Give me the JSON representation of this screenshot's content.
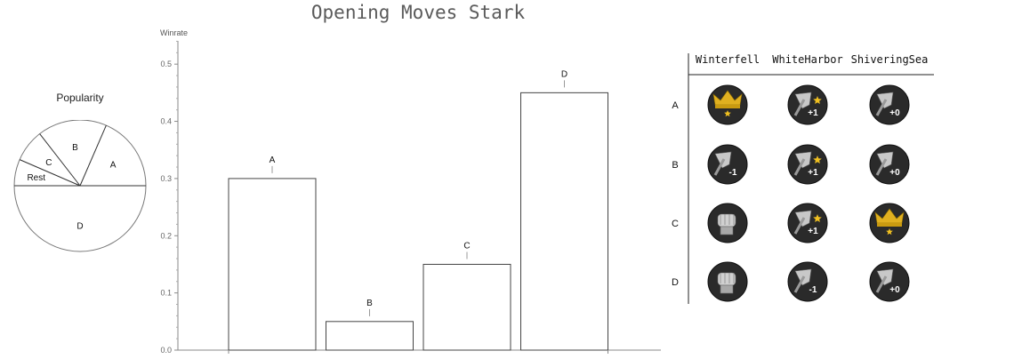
{
  "title": "Opening Moves Stark",
  "chart_data": [
    {
      "type": "pie",
      "title": "Popularity",
      "slices": [
        {
          "label": "A",
          "value": 0.185
        },
        {
          "label": "B",
          "value": 0.17
        },
        {
          "label": "C",
          "value": 0.08
        },
        {
          "label": "Rest",
          "value": 0.065
        },
        {
          "label": "D",
          "value": 0.5
        }
      ]
    },
    {
      "type": "bar",
      "ylabel": "Winrate",
      "categories": [
        "A",
        "B",
        "C",
        "D"
      ],
      "values": [
        0.3,
        0.05,
        0.15,
        0.45
      ],
      "ylim": [
        0,
        0.55
      ],
      "yticks": [
        "0.0",
        "0.1",
        "0.2",
        "0.3",
        "0.4",
        "0.5"
      ],
      "grid": false
    },
    {
      "type": "table",
      "columns": [
        "Winterfell",
        "WhiteHarbor",
        "ShiveringSea"
      ],
      "rows": [
        {
          "label": "A",
          "cells": [
            "crown-star",
            "axe-plus1-star",
            "axe-plus0"
          ]
        },
        {
          "label": "B",
          "cells": [
            "axe-minus1",
            "axe-plus1-star",
            "axe-plus0"
          ]
        },
        {
          "label": "C",
          "cells": [
            "gauntlet",
            "axe-plus1-star",
            "crown-star"
          ]
        },
        {
          "label": "D",
          "cells": [
            "gauntlet",
            "axe-minus1",
            "axe-plus0"
          ]
        }
      ],
      "token_texts": {
        "plus1": "+1",
        "minus1": "-1",
        "plus0": "+0"
      },
      "colors": {
        "token_bg": "#2a2a2a",
        "crown": "#e0b020",
        "star": "#f0c020",
        "steel": "#c8c8c8"
      }
    }
  ]
}
